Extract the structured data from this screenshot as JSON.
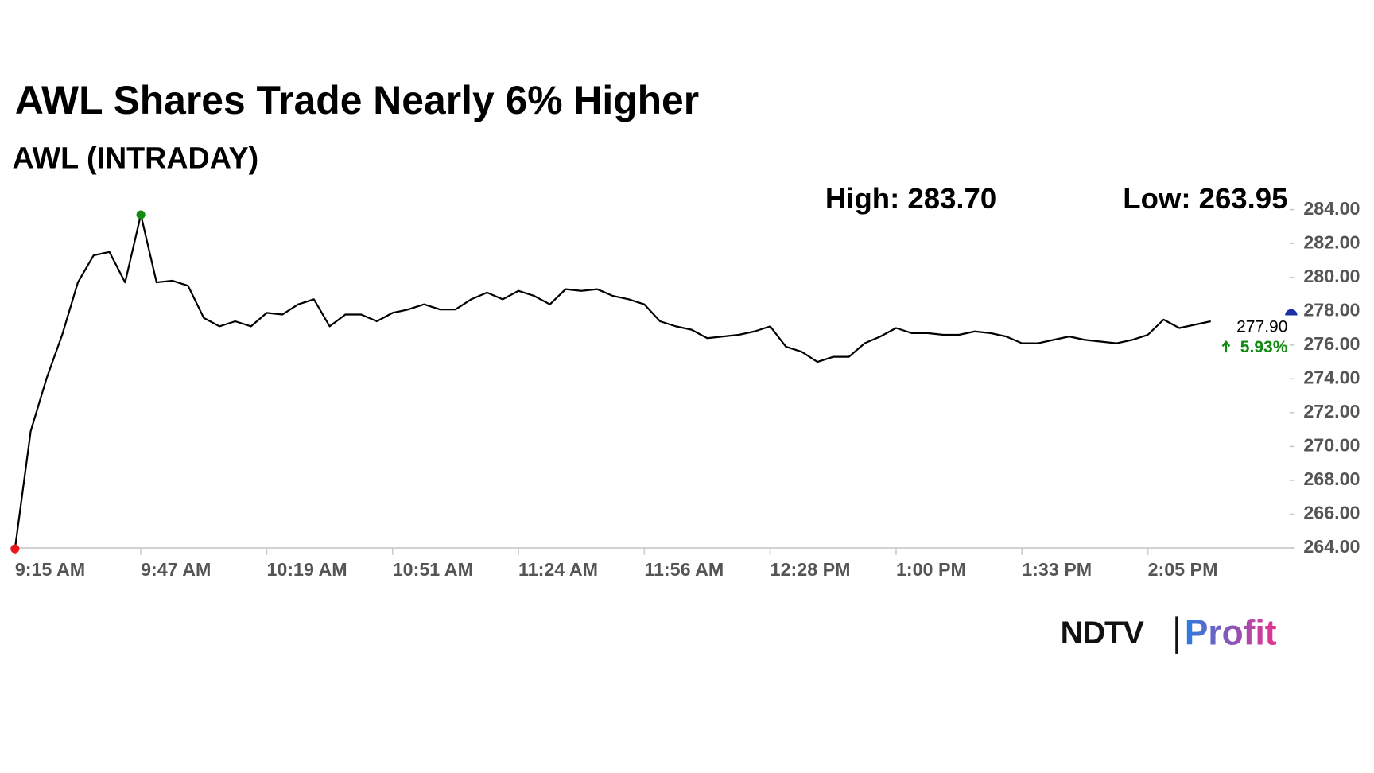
{
  "chart_data": {
    "type": "line",
    "title": "AWL Shares Trade Nearly 6% Higher",
    "subtitle": "AWL (INTRADAY)",
    "high_label": "High: 283.70",
    "low_label": "Low: 263.95",
    "last_price": "277.90",
    "change": "5.93%",
    "logo": [
      "NDTV",
      "Profit"
    ],
    "categories": [
      "9:15 AM",
      null,
      null,
      null,
      null,
      null,
      null,
      null,
      "9:47 AM",
      null,
      null,
      null,
      null,
      null,
      null,
      null,
      "10:19 AM",
      null,
      null,
      null,
      null,
      null,
      null,
      null,
      "10:51 AM",
      null,
      null,
      null,
      null,
      null,
      null,
      null,
      "11:24 AM",
      null,
      null,
      null,
      null,
      null,
      null,
      null,
      "11:56 AM",
      null,
      null,
      null,
      null,
      null,
      null,
      null,
      "12:28 PM",
      null,
      null,
      null,
      null,
      null,
      null,
      null,
      "1:00 PM",
      null,
      null,
      null,
      null,
      null,
      null,
      null,
      "1:33 PM",
      null,
      null,
      null,
      null,
      null,
      null,
      null,
      "2:05 PM",
      null,
      null,
      null,
      null,
      null,
      null,
      null,
      null,
      null
    ],
    "series": [
      {
        "name": "AWL",
        "color": "#000000",
        "values": [
          263.95,
          270.9,
          274.0,
          276.6,
          279.7,
          281.3,
          281.5,
          279.7,
          283.7,
          279.7,
          279.8,
          279.5,
          277.6,
          277.1,
          277.4,
          277.1,
          277.9,
          277.8,
          278.4,
          278.7,
          277.1,
          277.8,
          277.8,
          277.4,
          277.9,
          278.1,
          278.4,
          278.1,
          278.1,
          278.7,
          279.1,
          278.7,
          279.2,
          278.9,
          278.4,
          279.3,
          279.2,
          279.3,
          278.9,
          278.7,
          278.4,
          277.4,
          277.1,
          276.9,
          276.4,
          276.5,
          276.6,
          276.8,
          277.1,
          275.9,
          275.6,
          275.0,
          275.3,
          275.3,
          276.1,
          276.5,
          277.0,
          276.7,
          276.7,
          276.6,
          276.6,
          276.8,
          276.7,
          276.5,
          276.1,
          276.1,
          276.3,
          276.5,
          276.3,
          276.2,
          276.1,
          276.3,
          276.6,
          277.5,
          277.0,
          277.2,
          277.4,
          null,
          null,
          null,
          null,
          null
        ]
      }
    ],
    "ylim": [
      264,
      284
    ],
    "yticks": [
      {
        "value": 264,
        "label": "264.00"
      },
      {
        "value": 266,
        "label": "266.00"
      },
      {
        "value": 268,
        "label": "268.00"
      },
      {
        "value": 270,
        "label": "270.00"
      },
      {
        "value": 272,
        "label": "272.00"
      },
      {
        "value": 274,
        "label": "274.00"
      },
      {
        "value": 276,
        "label": "276.00"
      },
      {
        "value": 278,
        "label": "278.00"
      },
      {
        "value": 280,
        "label": "280.00"
      },
      {
        "value": 282,
        "label": "282.00"
      },
      {
        "value": 284,
        "label": "284.00"
      }
    ],
    "grid": false,
    "high_color": "#138a13",
    "low_color": "#e8161b",
    "change_color": "#138a13"
  }
}
